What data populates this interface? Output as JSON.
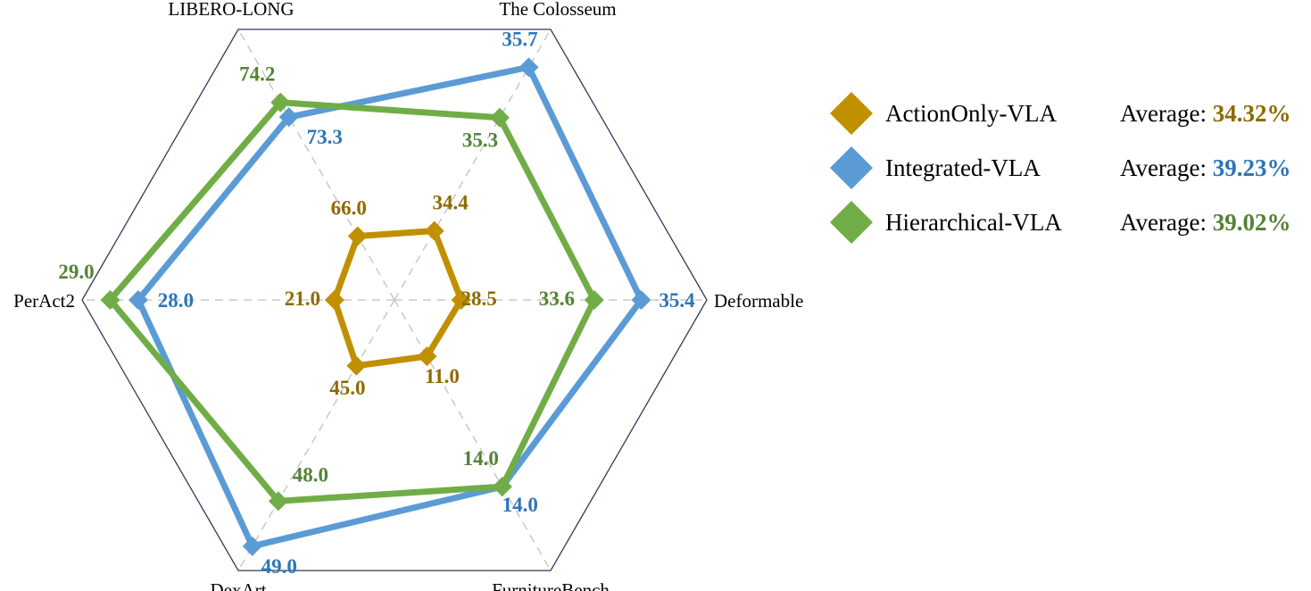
{
  "chart_data": {
    "type": "radar",
    "axes": [
      "LIBERO-LONG",
      "The Colosseum",
      "Deformable",
      "FurnitureBench",
      "DexArt",
      "PerAct2"
    ],
    "grid": true,
    "legend_position": "right",
    "series": [
      {
        "name": "ActionOnly-VLA",
        "color": "#C09000",
        "label_color": "#8E6A00",
        "marker": "diamond",
        "values": [
          66.0,
          34.4,
          28.5,
          11.0,
          45.0,
          21.0
        ],
        "average": "34.32%"
      },
      {
        "name": "Integrated-VLA",
        "color": "#5B9BD5",
        "label_color": "#2E75B6",
        "marker": "diamond",
        "values": [
          73.3,
          35.7,
          35.4,
          14.0,
          49.0,
          28.0
        ],
        "average": "39.23%"
      },
      {
        "name": "Hierarchical-VLA",
        "color": "#70AD47",
        "label_color": "#548235",
        "marker": "diamond",
        "values": [
          74.2,
          35.3,
          33.6,
          14.0,
          48.0,
          29.0
        ],
        "average": "39.02%"
      }
    ],
    "value_labels": [
      [
        "66.0",
        "34.4",
        "28.5",
        "11.0",
        "45.0",
        "21.0"
      ],
      [
        "73.3",
        "35.7",
        "35.4",
        "14.0",
        "49.0",
        "28.0"
      ],
      [
        "74.2",
        "35.3",
        "33.6",
        "14.0",
        "48.0",
        "29.0"
      ]
    ],
    "legend_prefix": "Average: "
  }
}
